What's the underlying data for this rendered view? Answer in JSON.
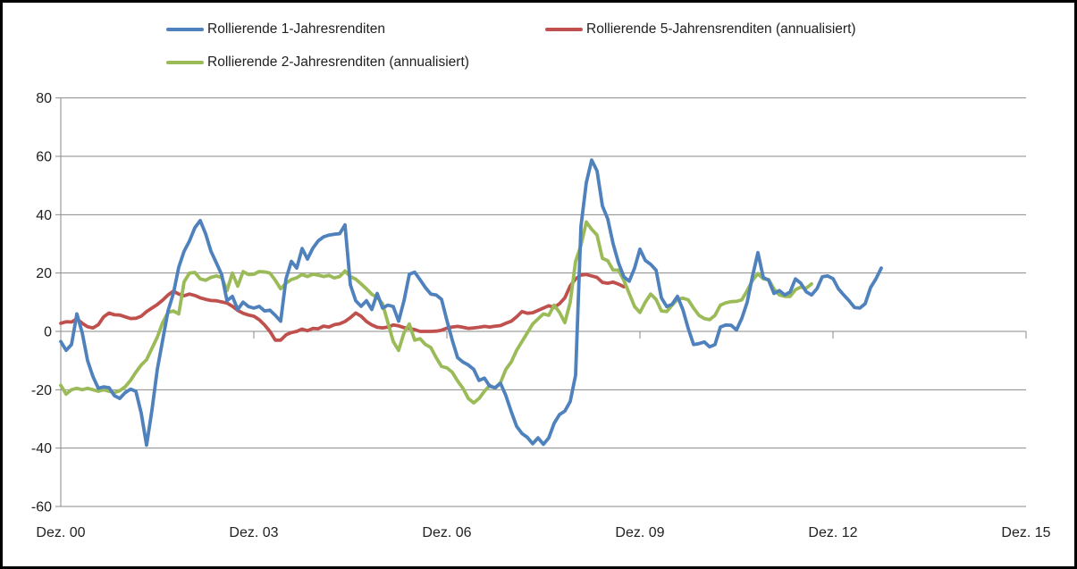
{
  "window": {
    "background_color": "#ffffff",
    "frame_border_color": "#000000",
    "gridline_color": "#8a8a8a",
    "text_color": "#1f1f1f"
  },
  "legend": [
    {
      "label": "Rollierende 1-Jahresrenditen",
      "color": "#4F81BD",
      "series": "one_year"
    },
    {
      "label": "Rollierende 5-Jahrensrenditen (annualisiert)",
      "color": "#C0504D",
      "series": "five_year"
    },
    {
      "label": "Rollierende 2-Jahresrenditen (annualisiert)",
      "color": "#9BBB59",
      "series": "two_year"
    }
  ],
  "chart_data": {
    "type": "line",
    "title": "",
    "xlabel": "",
    "ylabel": "",
    "grid": true,
    "legend_position": "top",
    "x_axis": {
      "unit": "months since Dez. 2000",
      "tick_labels": [
        "Dez. 00",
        "Dez. 03",
        "Dez. 06",
        "Dez. 09",
        "Dez. 12",
        "Dez. 15"
      ],
      "tick_month_offsets": [
        0,
        36,
        72,
        108,
        144,
        180
      ]
    },
    "y_axis": {
      "tick_labels": [
        80,
        60,
        40,
        20,
        0,
        -20,
        -40,
        -60
      ],
      "min": -60,
      "max": 80
    },
    "series": [
      {
        "key": "one_year",
        "name": "Rollierende 1-Jahresrenditen",
        "color": "#4F81BD",
        "start_month": 0,
        "values": [
          -3.5,
          -6.5,
          -4.5,
          6,
          -0.5,
          -10,
          -15.5,
          -19.5,
          -19,
          -19.3,
          -22,
          -23,
          -21,
          -19.8,
          -20.5,
          -28,
          -39,
          -27,
          -13,
          -3,
          7,
          13,
          22,
          27.5,
          31,
          35.5,
          38,
          33.5,
          27.5,
          23.5,
          19.5,
          10.5,
          12,
          7.5,
          10,
          8.5,
          8,
          8.6,
          7,
          7.3,
          5.5,
          3.5,
          18,
          24,
          21.7,
          28.4,
          24.8,
          28.5,
          31,
          32.4,
          33,
          33.3,
          33.5,
          36.5,
          16,
          10.5,
          8.6,
          10.5,
          7.5,
          13,
          8,
          9,
          8.5,
          3.5,
          10.5,
          19.6,
          20.3,
          17.7,
          15,
          12.8,
          12.5,
          11,
          3.8,
          -3,
          -9,
          -10.5,
          -11.5,
          -13,
          -16.8,
          -16,
          -18.8,
          -19.3,
          -17.8,
          -22,
          -27.5,
          -32.5,
          -35,
          -36.3,
          -38.5,
          -36.5,
          -38.7,
          -36.5,
          -31.5,
          -28.5,
          -27.3,
          -24,
          -15,
          36,
          51,
          58.7,
          55,
          43,
          38.5,
          30,
          23.5,
          18.7,
          17.2,
          21.7,
          28.2,
          24.3,
          23,
          21,
          11.5,
          8.5,
          9.3,
          12,
          7.5,
          1,
          -4.5,
          -4.2,
          -3.6,
          -5.3,
          -4.5,
          1.5,
          2.2,
          2.1,
          0.5,
          4.5,
          10,
          19,
          27,
          18.5,
          17.5,
          13,
          14,
          12.5,
          13.5,
          18,
          16.5,
          13.6,
          12.5,
          14.6,
          18.7,
          19,
          18.1,
          14.6,
          12.5,
          10.5,
          8.2,
          8,
          9.5,
          15,
          18,
          21.7
        ]
      },
      {
        "key": "five_year",
        "name": "Rollierende 5-Jahrensrenditen (annualisiert)",
        "color": "#C0504D",
        "start_month": 0,
        "values": [
          2.8,
          3.3,
          3.2,
          4.3,
          2.8,
          1.6,
          1.2,
          2.3,
          5,
          6.3,
          5.7,
          5.6,
          5,
          4.4,
          4.5,
          5.2,
          6.8,
          8,
          9.2,
          10.7,
          12.5,
          13.8,
          12.8,
          12.2,
          12.8,
          12.3,
          11.5,
          11,
          10.6,
          10.5,
          10.1,
          9.7,
          8.6,
          7.2,
          6.2,
          5.6,
          5.2,
          4,
          2.2,
          0,
          -3,
          -3,
          -1.2,
          -0.4,
          0,
          0.8,
          0.2,
          1,
          0.9,
          1.8,
          1.5,
          2.3,
          2.6,
          3.4,
          4.7,
          6.3,
          5.2,
          3.4,
          2.2,
          1.4,
          1.2,
          1.5,
          2.2,
          1.9,
          1.3,
          1,
          0.6,
          0,
          0,
          0,
          0.1,
          0.4,
          1.1,
          1.5,
          1.7,
          1.4,
          1,
          1.2,
          1.4,
          1.7,
          1.5,
          1.8,
          2,
          2.8,
          3.5,
          5,
          6.8,
          6.2,
          6.4,
          7.2,
          8,
          8.8,
          8.2,
          9.5,
          11.5,
          15.6,
          18,
          19.3,
          19.5,
          19,
          18.5,
          16.8,
          16.5,
          16.9,
          16.2,
          15.3
        ]
      },
      {
        "key": "two_year",
        "name": "Rollierende 2-Jahresrenditen (annualisiert)",
        "color": "#9BBB59",
        "start_month": 0,
        "values": [
          -18.5,
          -21.5,
          -20,
          -19.5,
          -20,
          -19.5,
          -20,
          -20.5,
          -20,
          -20.5,
          -21,
          -20.3,
          -19,
          -16.8,
          -14,
          -11.5,
          -9.7,
          -5.8,
          -2,
          3,
          6.5,
          7,
          6,
          17,
          20,
          20.2,
          18,
          17.5,
          18.5,
          19,
          18.5,
          14,
          20,
          15.5,
          20.5,
          19.5,
          19.6,
          20.5,
          20.4,
          20,
          17.5,
          14.6,
          16.5,
          17.8,
          18.4,
          19.5,
          18.8,
          19.6,
          19.3,
          18.8,
          19.2,
          18.3,
          18.8,
          20.7,
          18.8,
          17.9,
          16.3,
          14.6,
          12.7,
          11.7,
          9.5,
          3,
          -3.5,
          -6.5,
          -0.5,
          2.5,
          -3,
          -2.5,
          -4.5,
          -5.5,
          -9,
          -12,
          -12.5,
          -14,
          -17,
          -19.5,
          -23,
          -24.5,
          -23,
          -20.5,
          -18.5,
          -19.5,
          -17.5,
          -13,
          -10.5,
          -6.5,
          -3.5,
          -0.5,
          2.5,
          4.3,
          6,
          5.5,
          9,
          6.5,
          3,
          10,
          24,
          29.5,
          37.5,
          35,
          33,
          25,
          24.2,
          21,
          21,
          17.5,
          13,
          8.5,
          6.5,
          10,
          12.8,
          11,
          7,
          6.8,
          9,
          11,
          11.4,
          10.8,
          8,
          5.5,
          4.4,
          4,
          5.5,
          9,
          9.8,
          10.2,
          10.3,
          10.8,
          14,
          17.5,
          19.8,
          18,
          17.8,
          14.5,
          12.5,
          12,
          12,
          14.3,
          15.2,
          14.8,
          16.3
        ]
      }
    ]
  }
}
